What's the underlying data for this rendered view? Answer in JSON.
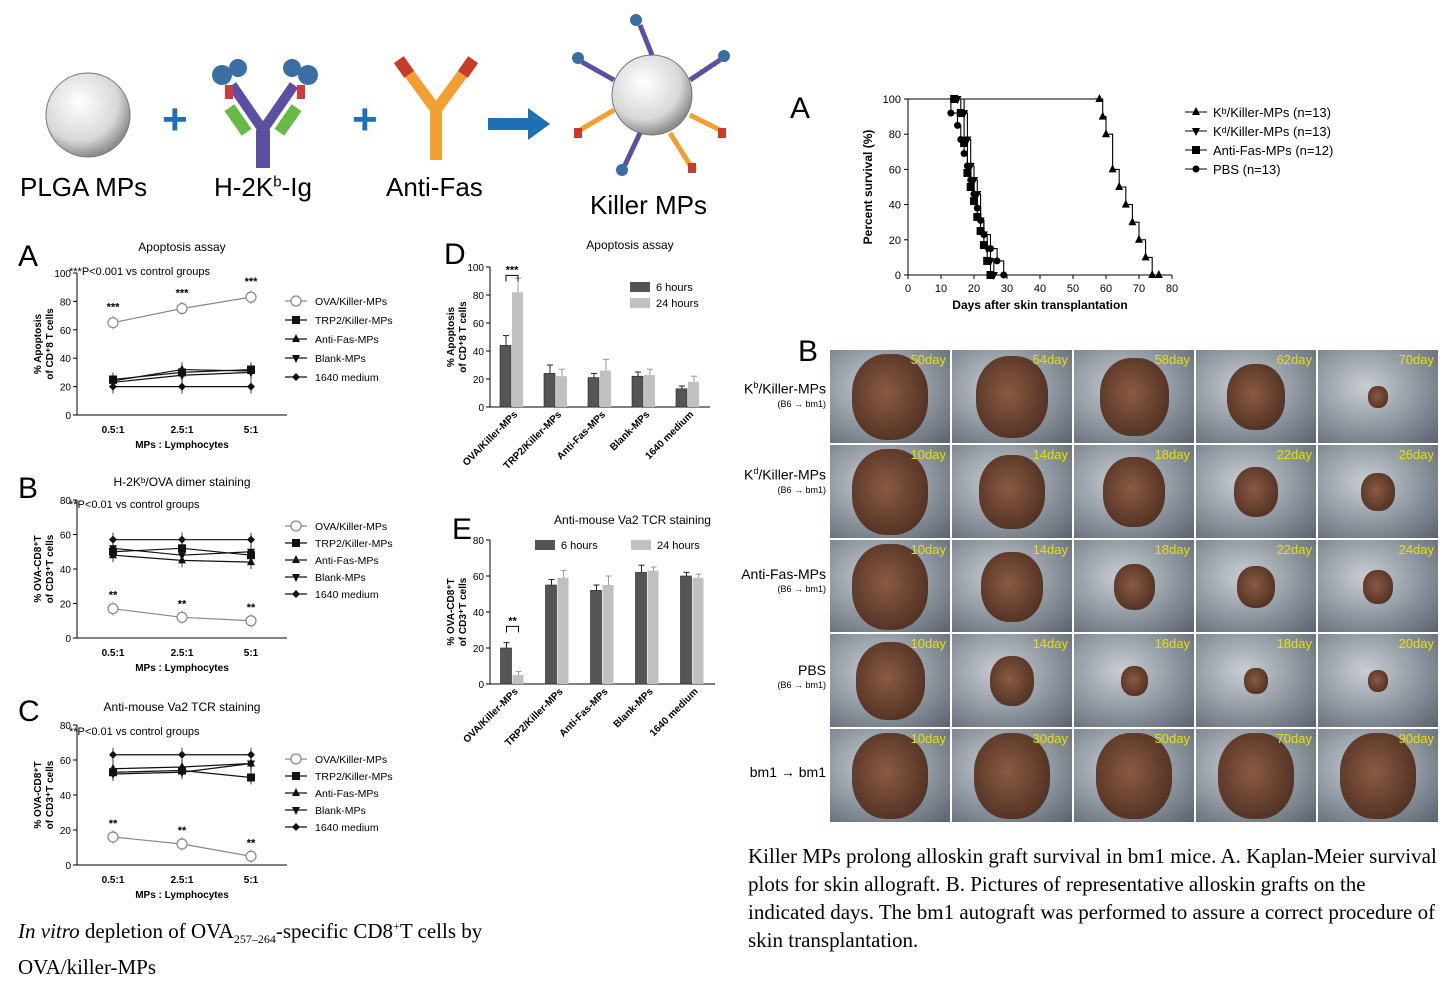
{
  "schematic": {
    "plga_label": "PLGA MPs",
    "h2k_label": "H-2K",
    "h2k_sup": "b",
    "h2k_suffix": "-Ig",
    "antifas_label": "Anti-Fas",
    "killer_label": "Killer MPs",
    "plus": "+"
  },
  "panel_letters": {
    "A": "A",
    "B": "B",
    "C": "C",
    "D": "D",
    "E": "E",
    "right_A": "A",
    "right_B": "B"
  },
  "colors": {
    "dark": "#222222",
    "grey": "#888888",
    "bar_dark": "#555555",
    "bar_light": "#c0c0c0",
    "arrow": "#1f6fb5",
    "day_label": "#e8e000"
  },
  "chart_data": [
    {
      "id": "A",
      "type": "line",
      "title": "Apoptosis assay",
      "note": "***P<0.001 vs control groups",
      "xlabel": "MPs : Lymphocytes",
      "ylabel_1": "% Apoptosis",
      "ylabel_2": "of CD⁺8 T cells",
      "categories": [
        "0.5:1",
        "2.5:1",
        "5:1"
      ],
      "ylim": [
        0,
        100
      ],
      "yticks": [
        0,
        20,
        40,
        60,
        80,
        100
      ],
      "significance": [
        "***",
        "***",
        "***"
      ],
      "series": [
        {
          "name": "OVA/Killer-MPs",
          "values": [
            65,
            75,
            83
          ],
          "marker": "circle-open"
        },
        {
          "name": "TRP2/Killer-MPs",
          "values": [
            25,
            30,
            32
          ],
          "marker": "square"
        },
        {
          "name": "Anti-Fas-MPs",
          "values": [
            24,
            32,
            31
          ],
          "marker": "triangle-up"
        },
        {
          "name": "Blank-MPs",
          "values": [
            23,
            28,
            30
          ],
          "marker": "triangle-down"
        },
        {
          "name": "1640 medium",
          "values": [
            20,
            20,
            20
          ],
          "marker": "diamond"
        }
      ]
    },
    {
      "id": "B",
      "type": "line",
      "title": "H-2Kᵇ/OVA dimer staining",
      "note": "**P<0.01 vs control groups",
      "xlabel": "MPs : Lymphocytes",
      "ylabel_1": "% OVA-CD8⁺T",
      "ylabel_2": "of CD3⁺T cells",
      "categories": [
        "0.5:1",
        "2.5:1",
        "5:1"
      ],
      "ylim": [
        0,
        80
      ],
      "yticks": [
        0,
        20,
        40,
        60,
        80
      ],
      "significance": [
        "**",
        "**",
        "**"
      ],
      "series": [
        {
          "name": "OVA/Killer-MPs",
          "values": [
            17,
            12,
            10
          ],
          "marker": "circle-open"
        },
        {
          "name": "TRP2/Killer-MPs",
          "values": [
            50,
            52,
            48
          ],
          "marker": "square"
        },
        {
          "name": "Anti-Fas-MPs",
          "values": [
            48,
            45,
            44
          ],
          "marker": "triangle-up"
        },
        {
          "name": "Blank-MPs",
          "values": [
            52,
            48,
            50
          ],
          "marker": "triangle-down"
        },
        {
          "name": "1640 medium",
          "values": [
            57,
            57,
            57
          ],
          "marker": "diamond"
        }
      ]
    },
    {
      "id": "C",
      "type": "line",
      "title": "Anti-mouse Va2 TCR staining",
      "note": "**P<0.01 vs control groups",
      "xlabel": "MPs : Lymphocytes",
      "ylabel_1": "% OVA-CD8⁺T",
      "ylabel_2": "of CD3⁺T cells",
      "categories": [
        "0.5:1",
        "2.5:1",
        "5:1"
      ],
      "ylim": [
        0,
        80
      ],
      "yticks": [
        0,
        20,
        40,
        60,
        80
      ],
      "significance": [
        "**",
        "**",
        "**"
      ],
      "series": [
        {
          "name": "OVA/Killer-MPs",
          "values": [
            16,
            12,
            5
          ],
          "marker": "circle-open"
        },
        {
          "name": "TRP2/Killer-MPs",
          "values": [
            53,
            54,
            50
          ],
          "marker": "square"
        },
        {
          "name": "Anti-Fas-MPs",
          "values": [
            55,
            56,
            58
          ],
          "marker": "triangle-up"
        },
        {
          "name": "Blank-MPs",
          "values": [
            52,
            53,
            58
          ],
          "marker": "triangle-down"
        },
        {
          "name": "1640 medium",
          "values": [
            63,
            63,
            63
          ],
          "marker": "diamond"
        }
      ]
    },
    {
      "id": "D",
      "type": "bar",
      "title": "Apoptosis assay",
      "ylabel_1": "% Apoptosis",
      "ylabel_2": "of CD⁺8 T cells",
      "categories": [
        "OVA/Killer-MPs",
        "TRP2/Killer-MPs",
        "Anti-Fas-MPs",
        "Blank-MPs",
        "1640 medium"
      ],
      "ylim": [
        0,
        100
      ],
      "yticks": [
        0,
        20,
        40,
        60,
        80,
        100
      ],
      "significance": "***",
      "series": [
        {
          "name": "6 hours",
          "values": [
            44,
            24,
            21,
            22,
            13
          ],
          "errors": [
            7,
            6,
            3,
            3,
            2
          ]
        },
        {
          "name": "24 hours",
          "values": [
            82,
            22,
            26,
            23,
            18
          ],
          "errors": [
            10,
            5,
            8,
            4,
            4
          ]
        }
      ]
    },
    {
      "id": "E",
      "type": "bar",
      "title": "Anti-mouse Va2 TCR staining",
      "ylabel_1": "% OVA-CD8⁺T",
      "ylabel_2": "of CD3⁺T cells",
      "categories": [
        "OVA/Killer-MPs",
        "TRP2/Killer-MPs",
        "Anti-Fas-MPs",
        "Blank-MPs",
        "1640 medium"
      ],
      "ylim": [
        0,
        80
      ],
      "yticks": [
        0,
        20,
        40,
        60,
        80
      ],
      "significance": "**",
      "series": [
        {
          "name": "6 hours",
          "values": [
            20,
            55,
            52,
            62,
            60
          ],
          "errors": [
            3,
            3,
            3,
            4,
            2
          ]
        },
        {
          "name": "24 hours",
          "values": [
            5,
            59,
            55,
            63,
            59
          ],
          "errors": [
            2,
            4,
            5,
            2,
            2
          ]
        }
      ]
    },
    {
      "id": "survival",
      "type": "line",
      "xlabel": "Days after skin transplantation",
      "ylabel": "Percent survival (%)",
      "xlim": [
        0,
        80
      ],
      "ylim": [
        0,
        100
      ],
      "xticks": [
        0,
        10,
        20,
        30,
        40,
        50,
        60,
        70,
        80
      ],
      "yticks": [
        0,
        20,
        40,
        60,
        80,
        100
      ],
      "series": [
        {
          "name": "Kᵇ/Killer-MPs (n=13)",
          "marker": "triangle-up",
          "x": [
            0,
            58,
            59,
            60,
            62,
            64,
            66,
            68,
            70,
            72,
            74,
            76
          ],
          "y": [
            100,
            100,
            90,
            80,
            60,
            50,
            40,
            30,
            20,
            10,
            0,
            0
          ]
        },
        {
          "name": "Kᵈ/Killer-MPs (n=13)",
          "marker": "triangle-down",
          "x": [
            0,
            15,
            17,
            18,
            19,
            20,
            21,
            22,
            23,
            24,
            25,
            26
          ],
          "y": [
            100,
            100,
            92,
            77,
            62,
            54,
            46,
            31,
            23,
            15,
            8,
            0
          ]
        },
        {
          "name": "Anti-Fas-MPs (n=12)",
          "marker": "square",
          "x": [
            0,
            14,
            16,
            17,
            18,
            19,
            20,
            21,
            22,
            23,
            24,
            25
          ],
          "y": [
            100,
            100,
            92,
            75,
            58,
            50,
            42,
            33,
            25,
            17,
            8,
            0
          ]
        },
        {
          "name": "PBS (n=13)",
          "marker": "circle",
          "x": [
            0,
            13,
            15,
            16,
            17,
            18,
            19,
            20,
            21,
            22,
            23,
            25,
            27,
            29
          ],
          "y": [
            100,
            92,
            85,
            77,
            69,
            62,
            54,
            46,
            38,
            31,
            23,
            15,
            8,
            0
          ]
        }
      ]
    }
  ],
  "photo_rows": [
    {
      "label": "K",
      "sup": "b",
      "suffix": "/Killer-MPs",
      "sub": "(B6 → bm1)",
      "days": [
        "50day",
        "54day",
        "58day",
        "62day",
        "70day"
      ],
      "sizes": [
        1,
        0.95,
        0.9,
        0.75,
        0.2
      ]
    },
    {
      "label": "K",
      "sup": "d",
      "suffix": "/Killer-MPs",
      "sub": "(B6 → bm1)",
      "days": [
        "10day",
        "14day",
        "18day",
        "22day",
        "26day"
      ],
      "sizes": [
        1,
        0.85,
        0.8,
        0.55,
        0.4
      ]
    },
    {
      "label": "Anti-Fas-MPs",
      "sup": "",
      "suffix": "",
      "sub": "(B6 → bm1)",
      "days": [
        "10day",
        "14day",
        "18day",
        "22day",
        "24day"
      ],
      "sizes": [
        1,
        0.8,
        0.5,
        0.45,
        0.35
      ]
    },
    {
      "label": "PBS",
      "sup": "",
      "suffix": "",
      "sub": "(B6 → bm1)",
      "days": [
        "10day",
        "14day",
        "16day",
        "18day",
        "20day"
      ],
      "sizes": [
        0.9,
        0.55,
        0.3,
        0.25,
        0.2
      ]
    },
    {
      "label": "bm1 → bm1",
      "sup": "",
      "suffix": "",
      "sub": "",
      "days": [
        "10day",
        "30day",
        "50day",
        "70day",
        "90day"
      ],
      "sizes": [
        1,
        1,
        1,
        1,
        1
      ]
    }
  ],
  "captions": {
    "left_italic": "In vitro",
    "left_1": " depletion of OVA",
    "left_sub": "257–264",
    "left_2": "-specific CD8",
    "left_sup": "+",
    "left_3": "T cells by",
    "left_line2": "OVA/killer-MPs",
    "right": "Killer MPs prolong alloskin graft survival in bm1 mice.  A. Kaplan-Meier survival plots for skin allograft.  B. Pictures of representative alloskin grafts on the indicated days. The bm1  autograft was performed to assure a correct procedure of skin transplantation."
  }
}
